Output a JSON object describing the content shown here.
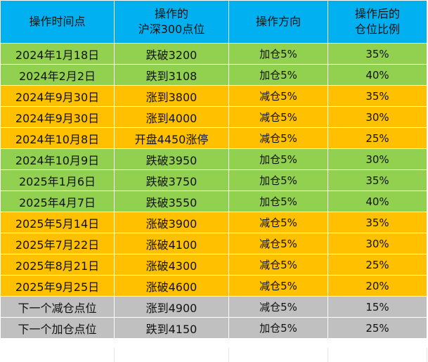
{
  "headers": [
    "操作时间点",
    "操作的\n沪深300点位",
    "操作方向",
    "操作后的\n仓位比例"
  ],
  "rows": [
    {
      "time": "2024年1月18日",
      "level": "跌破3200",
      "direction": "加仓5%",
      "position": "35%",
      "type": "green"
    },
    {
      "time": "2024年2月2日",
      "level": "跌到3108",
      "direction": "加仓5%",
      "position": "40%",
      "type": "green"
    },
    {
      "time": "2024年9月30日",
      "level": "涨到3800",
      "direction": "减仓5%",
      "position": "35%",
      "type": "orange"
    },
    {
      "time": "2024年9月30日",
      "level": "涨到4000",
      "direction": "减仓5%",
      "position": "30%",
      "type": "orange"
    },
    {
      "time": "2024年10月8日",
      "level": "开盘4450涨停",
      "direction": "减仓5%",
      "position": "25%",
      "type": "orange"
    },
    {
      "time": "2024年10月9日",
      "level": "跌破3950",
      "direction": "加仓5%",
      "position": "30%",
      "type": "green"
    },
    {
      "time": "2025年1月6日",
      "level": "跌破3750",
      "direction": "加仓5%",
      "position": "35%",
      "type": "green"
    },
    {
      "time": "2025年4月7日",
      "level": "跌破3550",
      "direction": "加仓5%",
      "position": "40%",
      "type": "green"
    },
    {
      "time": "2025年5月14日",
      "level": "涨破3900",
      "direction": "减仓5%",
      "position": "35%",
      "type": "orange"
    },
    {
      "time": "2025年7月22日",
      "level": "涨破4100",
      "direction": "减仓5%",
      "position": "30%",
      "type": "orange"
    },
    {
      "time": "2025年8月21日",
      "level": "涨破4300",
      "direction": "减仓5%",
      "position": "25%",
      "type": "orange"
    },
    {
      "time": "2025年9月25日",
      "level": "涨破4600",
      "direction": "减仓5%",
      "position": "20%",
      "type": "orange"
    },
    {
      "time": "下一个减仓点位",
      "level": "涨到4900",
      "direction": "减仓5%",
      "position": "15%",
      "type": "gray"
    },
    {
      "time": "下一个加仓点位",
      "level": "跌到4150",
      "direction": "加仓5%",
      "position": "25%",
      "type": "gray"
    }
  ],
  "colors": {
    "header": "#00b0f0",
    "green": "#92d050",
    "orange": "#ffc000",
    "gray": "#c0c0c0"
  }
}
